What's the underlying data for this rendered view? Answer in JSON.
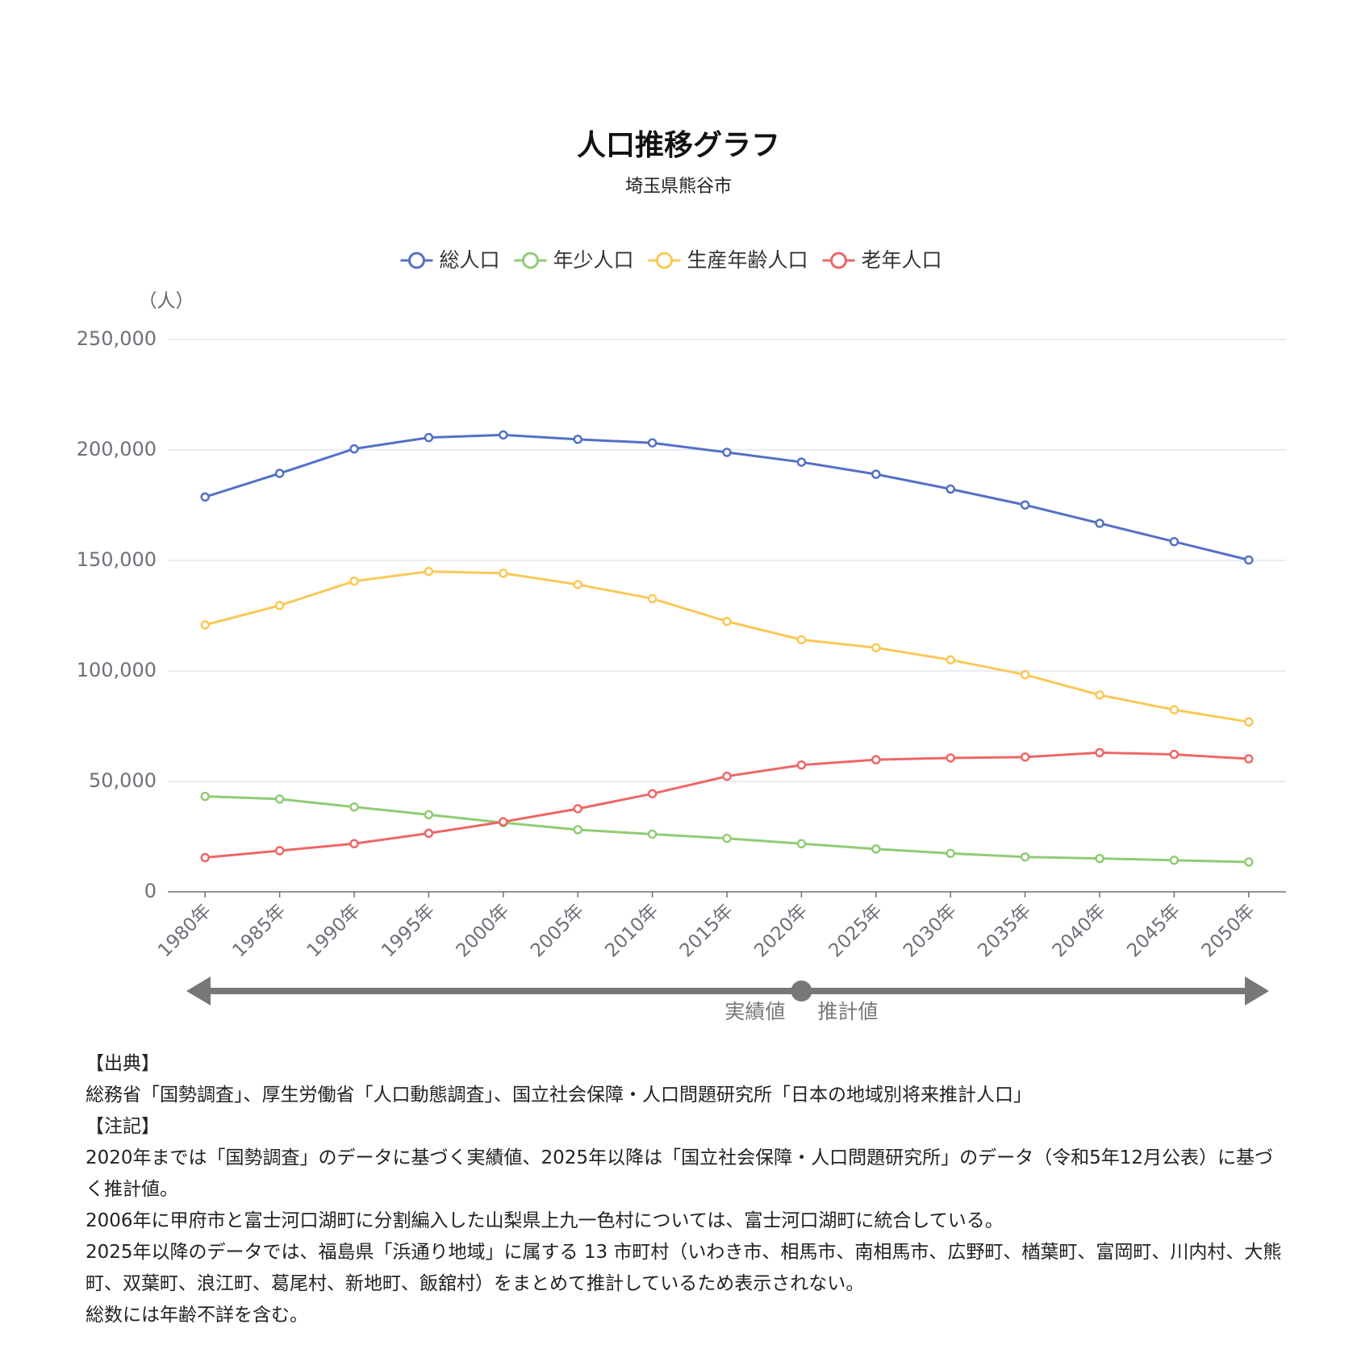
{
  "chart_data": {
    "type": "line",
    "title": "人口推移グラフ",
    "subtitle": "埼玉県熊谷市",
    "y_axis_label": "（人）",
    "categories": [
      "1980年",
      "1985年",
      "1990年",
      "1995年",
      "2000年",
      "2005年",
      "2010年",
      "2015年",
      "2020年",
      "2025年",
      "2030年",
      "2035年",
      "2040年",
      "2045年",
      "2050年"
    ],
    "series": [
      {
        "name": "総人口",
        "color": "#5470c6",
        "values": [
          178700,
          189400,
          200500,
          205600,
          206800,
          204800,
          203200,
          198900,
          194500,
          189000,
          182300,
          175100,
          166800,
          158500,
          150200
        ]
      },
      {
        "name": "年少人口",
        "color": "#91cc75",
        "values": [
          43200,
          42000,
          38400,
          34900,
          31300,
          28100,
          26100,
          24200,
          21800,
          19400,
          17400,
          15800,
          15100,
          14300,
          13500
        ]
      },
      {
        "name": "生産年齢人口",
        "color": "#fac858",
        "values": [
          120800,
          129600,
          140600,
          145000,
          144200,
          139100,
          132700,
          122400,
          114100,
          110500,
          105000,
          98300,
          89100,
          82400,
          76900
        ]
      },
      {
        "name": "老年人口",
        "color": "#ee6666",
        "values": [
          15500,
          18600,
          21800,
          26500,
          31700,
          37600,
          44400,
          52300,
          57400,
          59800,
          60600,
          61000,
          63000,
          62200,
          60200
        ]
      }
    ],
    "ylim": [
      0,
      250000
    ],
    "yticks": [
      0,
      {
        "value": 50000,
        "label": "50,000"
      },
      {
        "value": 100000,
        "label": "100,000"
      },
      {
        "value": 150000,
        "label": "150,000"
      },
      {
        "value": 200000,
        "label": "200,000"
      },
      {
        "value": 250000,
        "label": "250,000"
      }
    ],
    "grid": true,
    "legend": "top",
    "annotations": {
      "actual": "実績値",
      "forecast": "推計値"
    }
  },
  "notes": {
    "source_heading": "【出典】",
    "source": "総務省「国勢調査」、厚生労働省「人口動態調査」、国立社会保障・人口問題研究所「日本の地域別将来推計人口」",
    "note_heading": "【注記】",
    "items": [
      "2020年までは「国勢調査」のデータに基づく実績値、2025年以降は「国立社会保障・人口問題研究所」のデータ（令和5年12月公表）に基づく推計値。",
      "2006年に甲府市と富士河口湖町に分割編入した山梨県上九一色村については、富士河口湖町に統合している。",
      "2025年以降のデータでは、福島県「浜通り地域」に属する 13 市町村（いわき市、相馬市、南相馬市、広野町、楢葉町、富岡町、川内村、大熊町、双葉町、浪江町、葛尾村、新地町、飯舘村）をまとめて推計しているため表示されない。",
      "総数には年齢不詳を含む。"
    ]
  }
}
